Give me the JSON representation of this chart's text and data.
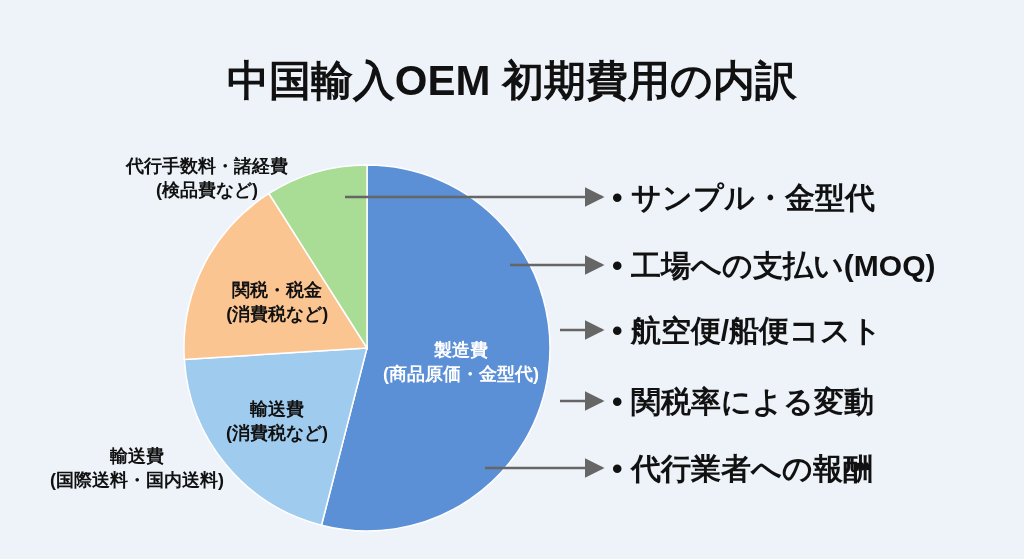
{
  "chart_data": {
    "type": "pie",
    "title": "中国輸入OEM 初期費用の内訳",
    "categories": [
      "製造費\n(商品原価・金型代)",
      "輸送費\n(国際送料・国内送料)",
      "関税・税金\n(消費税など)",
      "代行手数料・諸経費\n(検品費など)"
    ],
    "values": [
      54,
      20,
      17,
      9
    ],
    "colors": [
      "#5b8fd6",
      "#9fcbee",
      "#fbc592",
      "#a9dc95"
    ],
    "annotations": [
      "輸送費\n(消費税など)",
      "• サンプル・金型代",
      "• 工場への支払い(MOQ)",
      "• 航空便/船便コスト",
      "• 関税率による変動",
      "• 代行業者への報酬"
    ]
  }
}
